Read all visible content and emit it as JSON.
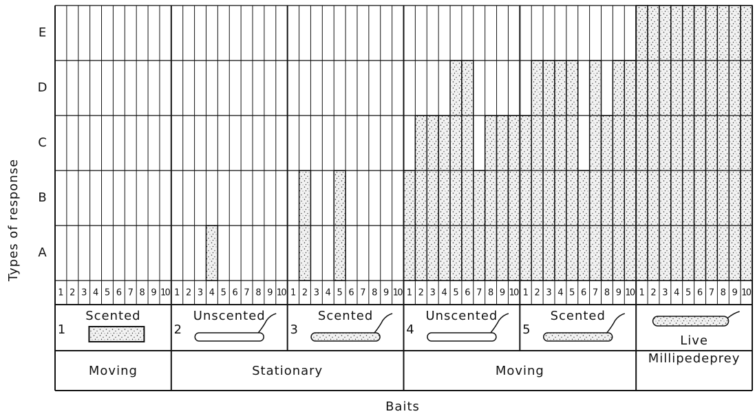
{
  "chart_data": {
    "type": "bar",
    "y_label": "Types of response",
    "x_label": "Baits",
    "ylim": [
      0,
      5
    ],
    "yticks": [
      {
        "value": 0.5,
        "label": "A"
      },
      {
        "value": 1.5,
        "label": "B"
      },
      {
        "value": 2.5,
        "label": "C"
      },
      {
        "value": 3.5,
        "label": "D"
      },
      {
        "value": 4.5,
        "label": "E"
      }
    ],
    "categories": [
      "1",
      "2",
      "3",
      "4",
      "5",
      "6",
      "7",
      "8",
      "9",
      "10",
      "1",
      "2",
      "3",
      "4",
      "5",
      "6",
      "7",
      "8",
      "9",
      "10",
      "1",
      "2",
      "3",
      "4",
      "5",
      "6",
      "7",
      "8",
      "9",
      "10",
      "1",
      "2",
      "3",
      "4",
      "5",
      "6",
      "7",
      "8",
      "9",
      "10",
      "1",
      "2",
      "3",
      "4",
      "5",
      "6",
      "7",
      "8",
      "9",
      "10",
      "1",
      "2",
      "3",
      "4",
      "5",
      "6",
      "7",
      "8",
      "9",
      "10"
    ],
    "values": [
      0,
      0,
      0,
      0,
      0,
      0,
      0,
      0,
      0,
      0,
      0,
      0,
      0,
      1,
      0,
      0,
      0,
      0,
      0,
      0,
      0,
      2,
      0,
      0,
      2,
      0,
      0,
      0,
      0,
      0,
      2,
      3,
      3,
      3,
      4,
      4,
      2,
      3,
      3,
      3,
      3,
      4,
      4,
      4,
      4,
      2,
      4,
      3,
      4,
      4,
      5,
      5,
      5,
      5,
      5,
      5,
      5,
      5,
      5,
      5
    ],
    "baits": [
      {
        "number": "1",
        "label": "Scented"
      },
      {
        "number": "2",
        "label": "Unscented"
      },
      {
        "number": "3",
        "label": "Scented"
      },
      {
        "number": "4",
        "label": "Unscented"
      },
      {
        "number": "5",
        "label": "Scented"
      },
      {
        "label": "Live"
      }
    ],
    "modes": [
      "Moving",
      "Stationary",
      "Moving",
      "Millipedeprey"
    ]
  }
}
